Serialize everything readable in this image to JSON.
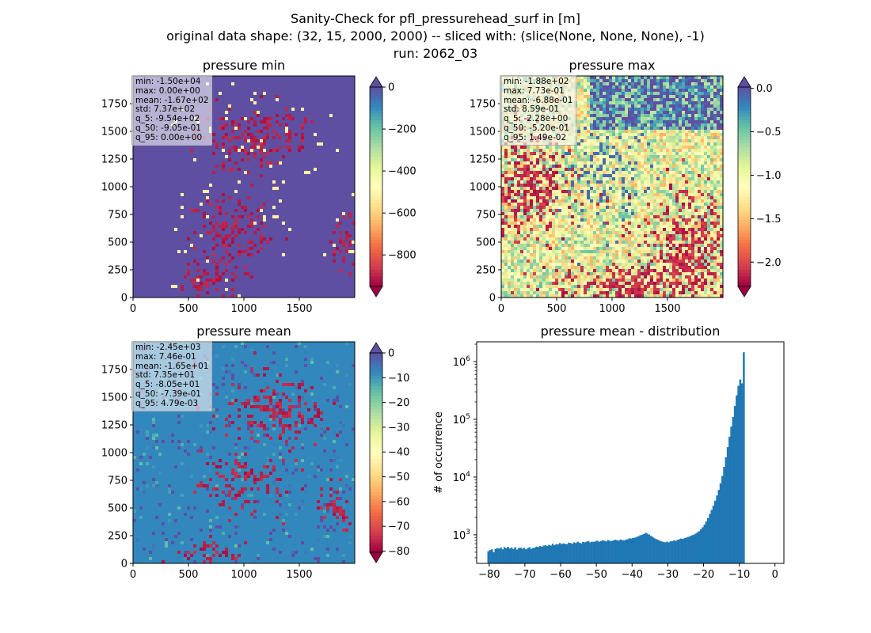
{
  "suptitle": [
    "Sanity-Check for pfl_pressurehead_surf in [m]",
    "original data shape: (32, 15, 2000, 2000) -- sliced with: (slice(None, None, None), -1)",
    "run: 2062_03"
  ],
  "colors": {
    "spectral": [
      "#9e0142",
      "#d53e4f",
      "#f46d43",
      "#fdae61",
      "#fee08b",
      "#ffffbf",
      "#e6f598",
      "#abdda4",
      "#66c2a5",
      "#3288bd",
      "#5e4fa2"
    ],
    "hist_bar": "#1f77b4"
  },
  "chart_data": [
    {
      "type": "heatmap",
      "title": "pressure min",
      "colormap": "Spectral",
      "x_ticks": [
        "0",
        "500",
        "1000",
        "1500"
      ],
      "y_ticks": [
        "0",
        "250",
        "500",
        "750",
        "1000",
        "1250",
        "1500",
        "1750"
      ],
      "xlim": [
        0,
        2000
      ],
      "ylim": [
        0,
        2000
      ],
      "colorbar": {
        "vmin": -950,
        "vmax": 0,
        "ticks": [
          0,
          -200,
          -400,
          -600,
          -800
        ],
        "tick_labels": [
          "0",
          "−200",
          "−400",
          "−600",
          "−800"
        ],
        "extend": "both"
      },
      "stats": [
        "min: -1.50e+04",
        "max: 0.00e+00",
        "mean: -1.67e+02",
        "std: 7.37e+02",
        "q_5: -9.54e+02",
        "q_50: -9.05e-01",
        "q_95: 0.00e+00"
      ]
    },
    {
      "type": "heatmap",
      "title": "pressure max",
      "colormap": "Spectral",
      "x_ticks": [
        "0",
        "500",
        "1000",
        "1500"
      ],
      "y_ticks": [
        "0",
        "250",
        "500",
        "750",
        "1000",
        "1250",
        "1500",
        "1750"
      ],
      "xlim": [
        0,
        2000
      ],
      "ylim": [
        0,
        2000
      ],
      "colorbar": {
        "vmin": -2.28,
        "vmax": 0.0149,
        "ticks": [
          0.0,
          -0.5,
          -1.0,
          -1.5,
          -2.0
        ],
        "tick_labels": [
          "0.0",
          "−0.5",
          "−1.0",
          "−1.5",
          "−2.0"
        ],
        "extend": "both"
      },
      "stats": [
        "min: -1.88e+02",
        "max: 7.73e-01",
        "mean: -6.88e-01",
        "std: 8.59e-01",
        "q_5: -2.28e+00",
        "q_50: -5.20e-01",
        "q_95: 1.49e-02"
      ]
    },
    {
      "type": "heatmap",
      "title": "pressure mean",
      "colormap": "Spectral",
      "x_ticks": [
        "0",
        "500",
        "1000",
        "1500"
      ],
      "y_ticks": [
        "0",
        "250",
        "500",
        "750",
        "1000",
        "1250",
        "1500",
        "1750"
      ],
      "xlim": [
        0,
        2000
      ],
      "ylim": [
        0,
        2000
      ],
      "colorbar": {
        "vmin": -80.5,
        "vmax": 0.0048,
        "ticks": [
          0,
          -10,
          -20,
          -30,
          -40,
          -50,
          -60,
          -70,
          -80
        ],
        "tick_labels": [
          "0",
          "−10",
          "−20",
          "−30",
          "−40",
          "−50",
          "−60",
          "−70",
          "−80"
        ],
        "extend": "both"
      },
      "stats": [
        "min: -2.45e+03",
        "max: 7.46e-01",
        "mean: -1.65e+01",
        "std: 7.35e+01",
        "q_5: -8.05e+01",
        "q_50: -7.39e-01",
        "q_95: 4.79e-03"
      ]
    },
    {
      "type": "bar",
      "title": "pressure mean - distribution",
      "ylabel": "# of occurrence",
      "y_scale": "log",
      "xlim": [
        -83.5,
        2.5
      ],
      "ylim": [
        320,
        2200000
      ],
      "x_ticks": [
        -80,
        -70,
        -60,
        -50,
        -40,
        -30,
        -20,
        -10,
        0
      ],
      "x_tick_labels": [
        "−80",
        "−70",
        "−60",
        "−50",
        "−40",
        "−30",
        "−20",
        "−10",
        "0"
      ],
      "y_ticks": [
        1000,
        10000,
        100000,
        1000000
      ],
      "y_tick_labels": [
        [
          "10",
          "3"
        ],
        [
          "10",
          "4"
        ],
        [
          "10",
          "5"
        ],
        [
          "10",
          "6"
        ]
      ],
      "bin_width": 0.5,
      "bins_start": -80.5,
      "values": [
        520,
        545,
        560,
        500,
        570,
        590,
        575,
        600,
        560,
        610,
        590,
        620,
        580,
        600,
        570,
        610,
        555,
        590,
        600,
        575,
        595,
        560,
        585,
        610,
        570,
        590,
        600,
        625,
        615,
        640,
        620,
        650,
        660,
        640,
        670,
        650,
        700,
        660,
        690,
        680,
        720,
        690,
        710,
        700,
        690,
        730,
        720,
        700,
        740,
        720,
        760,
        730,
        710,
        750,
        740,
        760,
        780,
        740,
        760,
        750,
        770,
        790,
        760,
        780,
        800,
        790,
        770,
        810,
        790,
        780,
        800,
        820,
        810,
        790,
        830,
        810,
        800,
        820,
        840,
        870,
        860,
        880,
        890,
        920,
        940,
        980,
        1000,
        1030,
        1080,
        1050,
        1010,
        960,
        920,
        870,
        840,
        820,
        790,
        770,
        750,
        740,
        760,
        740,
        770,
        780,
        800,
        790,
        820,
        840,
        860,
        850,
        880,
        900,
        920,
        950,
        980,
        1000,
        1050,
        1100,
        1150,
        1250,
        1350,
        1500,
        1700,
        1950,
        2300,
        2700,
        3200,
        3900,
        4800,
        6000,
        7800,
        10500,
        15000,
        22000,
        33000,
        50000,
        75000,
        110000,
        170000,
        260000,
        380000,
        490000,
        420000,
        1450000
      ]
    }
  ]
}
